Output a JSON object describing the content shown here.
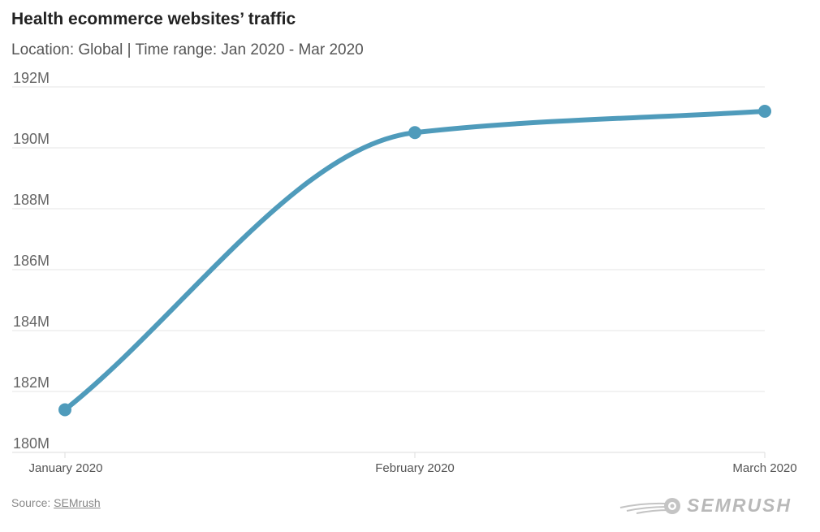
{
  "header": {
    "title": "Health ecommerce websites’ traffic",
    "subtitle": "Location: Global | Time range: Jan 2020 - Mar 2020"
  },
  "footer": {
    "source_prefix": "Source: ",
    "source_link": "SEMrush",
    "logo_text": "SEMRUSH"
  },
  "colors": {
    "line": "#4f9bbb",
    "grid": "#e6e6e6",
    "tick_text": "#666666",
    "axis_text": "#555555"
  },
  "chart_data": {
    "type": "line",
    "title": "Health ecommerce websites’ traffic",
    "subtitle": "Location: Global | Time range: Jan 2020 - Mar 2020",
    "categories": [
      "January 2020",
      "February 2020",
      "March 2020"
    ],
    "series": [
      {
        "values": [
          181400000,
          190500000,
          191200000
        ]
      }
    ],
    "ylim": [
      180000000,
      192000000
    ],
    "yticks": [
      180000000,
      182000000,
      184000000,
      186000000,
      188000000,
      190000000,
      192000000
    ],
    "ytick_labels": [
      "180M",
      "182M",
      "184M",
      "186M",
      "188M",
      "190M",
      "192M"
    ],
    "grid": true,
    "smooth": true
  }
}
